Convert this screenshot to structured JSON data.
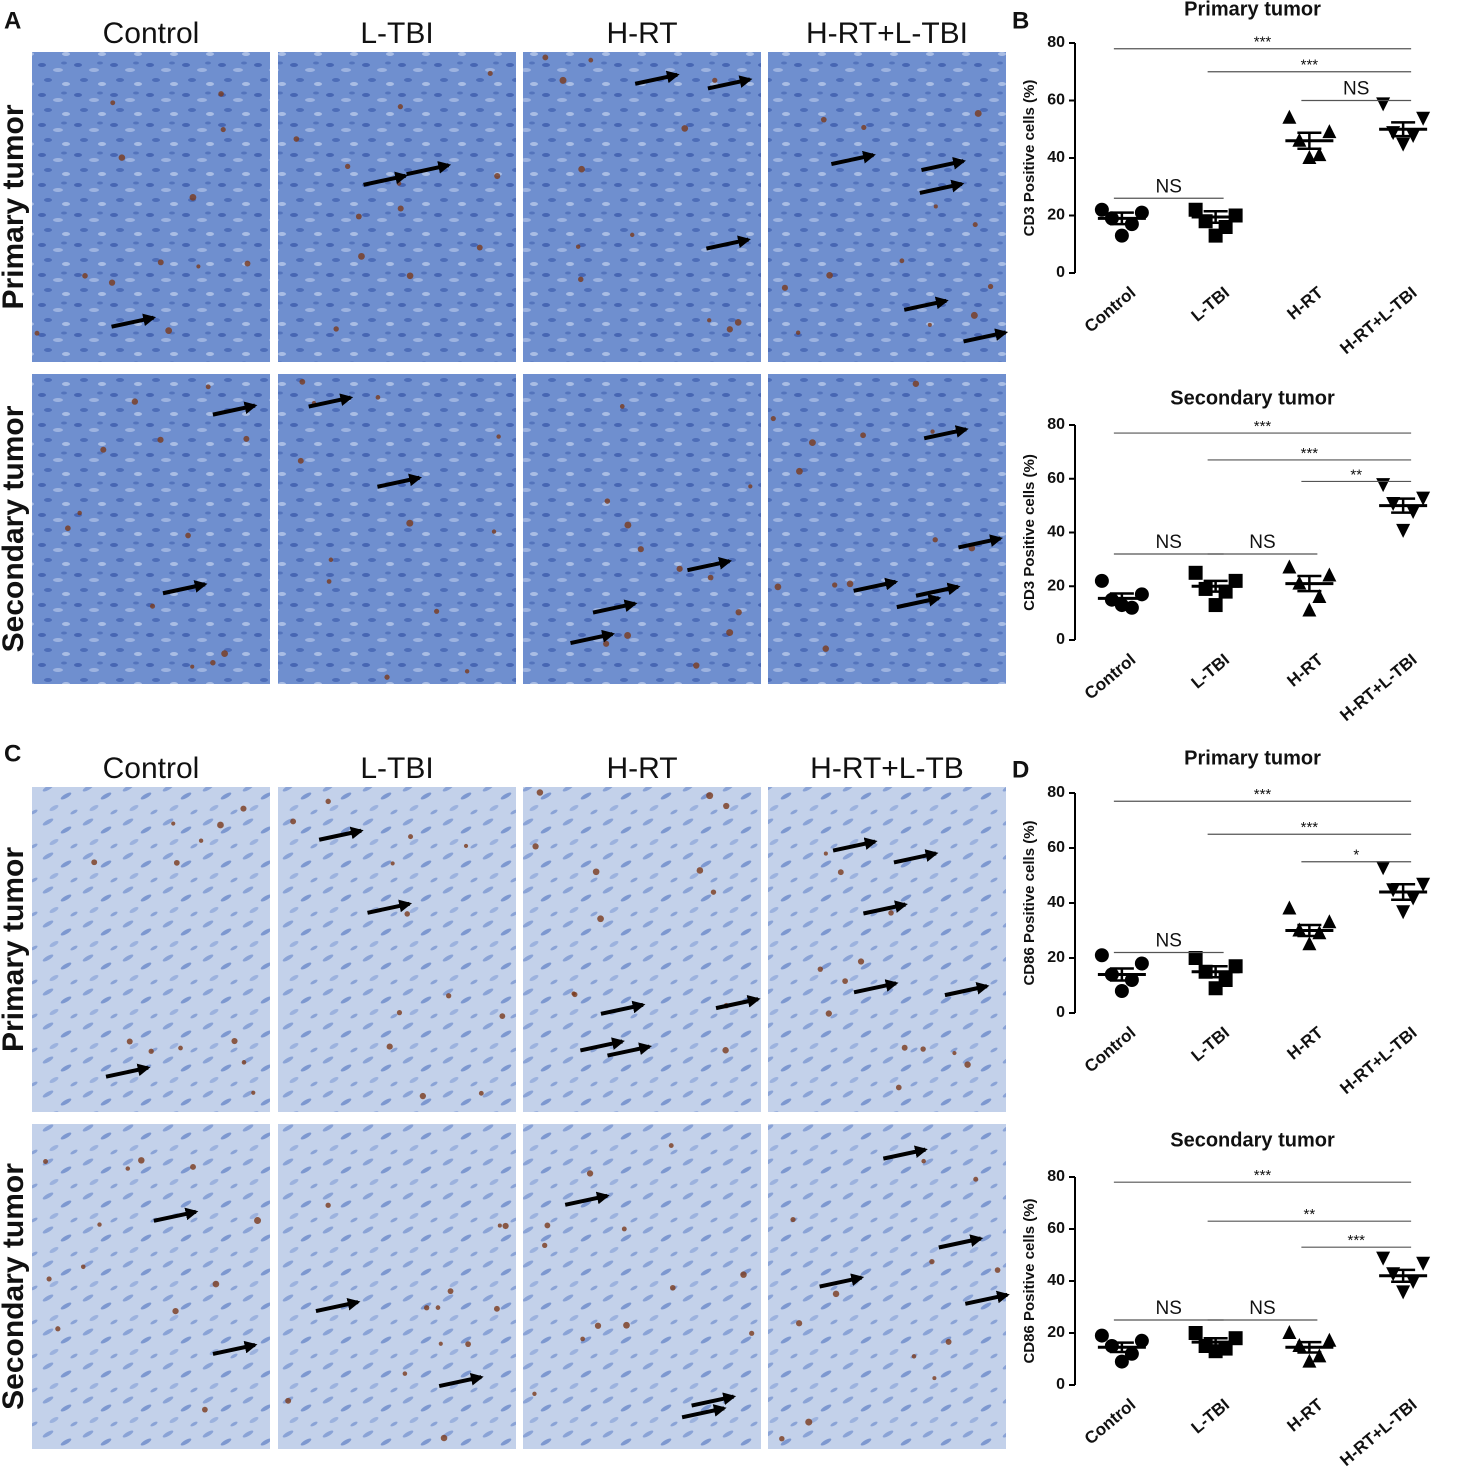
{
  "image_panels": [
    {
      "letter": "A",
      "columns": [
        "Control",
        "L-TBI",
        "H-RT",
        "H-RT+L-TBI"
      ],
      "rows": [
        "Primary tumor",
        "Secondary tumor"
      ]
    },
    {
      "letter": "C",
      "columns": [
        "Control",
        "L-TBI",
        "H-RT",
        "H-RT+L-TB"
      ],
      "rows": [
        "Primary tumor",
        "Secondary tumor"
      ]
    }
  ],
  "chart_data": [
    {
      "type": "dot",
      "panel": "B",
      "title": "Primary tumor",
      "y_label": "CD3 Positive cells (%)",
      "categories": [
        "Control",
        "L-TBI",
        "H-RT",
        "H-RT+L-TBI"
      ],
      "markers": [
        "circle",
        "square",
        "triangle",
        "triangle-down"
      ],
      "values": [
        [
          22,
          21,
          19,
          17,
          13
        ],
        [
          22,
          20,
          18,
          16,
          13
        ],
        [
          54,
          49,
          46,
          41,
          40
        ],
        [
          59,
          54,
          49,
          48,
          45
        ]
      ],
      "means": [
        19,
        19.5,
        46,
        50
      ],
      "sems": [
        2,
        2,
        2.8,
        2.4
      ],
      "ylim": [
        0,
        80
      ],
      "yticks": [
        0,
        20,
        40,
        60,
        80
      ],
      "brackets": [
        {
          "from": "Control",
          "to": "H-RT+L-TBI",
          "y": 78,
          "label": "***"
        },
        {
          "from": "L-TBI",
          "to": "H-RT+L-TBI",
          "y": 70,
          "label": "***"
        },
        {
          "from": "H-RT",
          "to": "H-RT+L-TBI",
          "y": 60,
          "label": "NS"
        },
        {
          "from": "Control",
          "to": "L-TBI",
          "y": 26,
          "label": "NS"
        }
      ]
    },
    {
      "type": "dot",
      "title": "Secondary tumor",
      "y_label": "CD3 Positive cells (%)",
      "categories": [
        "Control",
        "L-TBI",
        "H-RT",
        "H-RT+L-TBI"
      ],
      "markers": [
        "circle",
        "square",
        "triangle",
        "triangle-down"
      ],
      "values": [
        [
          22,
          17,
          15,
          12,
          13
        ],
        [
          25,
          22,
          19,
          18,
          13
        ],
        [
          27,
          24,
          21,
          16,
          11
        ],
        [
          58,
          53,
          51,
          48,
          41
        ]
      ],
      "means": [
        15.5,
        20,
        21,
        50
      ],
      "sems": [
        1.8,
        2,
        2.8,
        2.6
      ],
      "ylim": [
        0,
        80
      ],
      "yticks": [
        0,
        20,
        40,
        60,
        80
      ],
      "brackets": [
        {
          "from": "Control",
          "to": "H-RT+L-TBI",
          "y": 77,
          "label": "***"
        },
        {
          "from": "L-TBI",
          "to": "H-RT+L-TBI",
          "y": 67,
          "label": "***"
        },
        {
          "from": "H-RT",
          "to": "H-RT+L-TBI",
          "y": 59,
          "label": "**"
        },
        {
          "from": "Control",
          "to": "L-TBI",
          "y": 32,
          "label": "NS"
        },
        {
          "from": "L-TBI",
          "to": "H-RT",
          "y": 32,
          "label": "NS"
        }
      ]
    },
    {
      "type": "dot",
      "panel": "D",
      "title": "Primary tumor",
      "y_label": "CD86 Positive cells (%)",
      "categories": [
        "Control",
        "L-TBI",
        "H-RT",
        "H-RT+L-TBI"
      ],
      "markers": [
        "circle",
        "square",
        "triangle",
        "triangle-down"
      ],
      "values": [
        [
          21,
          18,
          14,
          12,
          8
        ],
        [
          20,
          17,
          15,
          12,
          9
        ],
        [
          38,
          33,
          30,
          29,
          25
        ],
        [
          53,
          47,
          45,
          42,
          37
        ]
      ],
      "means": [
        14,
        15,
        30,
        44
      ],
      "sems": [
        2.2,
        2,
        2,
        2.8
      ],
      "ylim": [
        0,
        80
      ],
      "yticks": [
        0,
        20,
        40,
        60,
        80
      ],
      "brackets": [
        {
          "from": "Control",
          "to": "H-RT+L-TBI",
          "y": 77,
          "label": "***"
        },
        {
          "from": "L-TBI",
          "to": "H-RT+L-TBI",
          "y": 65,
          "label": "***"
        },
        {
          "from": "H-RT",
          "to": "H-RT+L-TBI",
          "y": 55,
          "label": "*"
        },
        {
          "from": "Control",
          "to": "L-TBI",
          "y": 22,
          "label": "NS"
        }
      ]
    },
    {
      "type": "dot",
      "title": "Secondary tumor",
      "y_label": "CD86 Positive cells (%)",
      "categories": [
        "Control",
        "L-TBI",
        "H-RT",
        "H-RT+L-TBI"
      ],
      "markers": [
        "circle",
        "square",
        "triangle",
        "triangle-down"
      ],
      "values": [
        [
          19,
          17,
          15,
          12,
          9
        ],
        [
          20,
          18,
          15,
          14,
          13
        ],
        [
          20,
          17,
          15,
          11,
          9
        ],
        [
          49,
          47,
          43,
          40,
          36
        ]
      ],
      "means": [
        14.5,
        16.5,
        14.5,
        42
      ],
      "sems": [
        1.8,
        1.5,
        2,
        2.3
      ],
      "ylim": [
        0,
        80
      ],
      "yticks": [
        0,
        20,
        40,
        60,
        80
      ],
      "brackets": [
        {
          "from": "Control",
          "to": "H-RT+L-TBI",
          "y": 78,
          "label": "***"
        },
        {
          "from": "L-TBI",
          "to": "H-RT+L-TBI",
          "y": 63,
          "label": "**"
        },
        {
          "from": "H-RT",
          "to": "H-RT+L-TBI",
          "y": 53,
          "label": "***"
        },
        {
          "from": "Control",
          "to": "L-TBI",
          "y": 25,
          "label": "NS"
        },
        {
          "from": "L-TBI",
          "to": "H-RT",
          "y": 25,
          "label": "NS"
        }
      ]
    }
  ]
}
